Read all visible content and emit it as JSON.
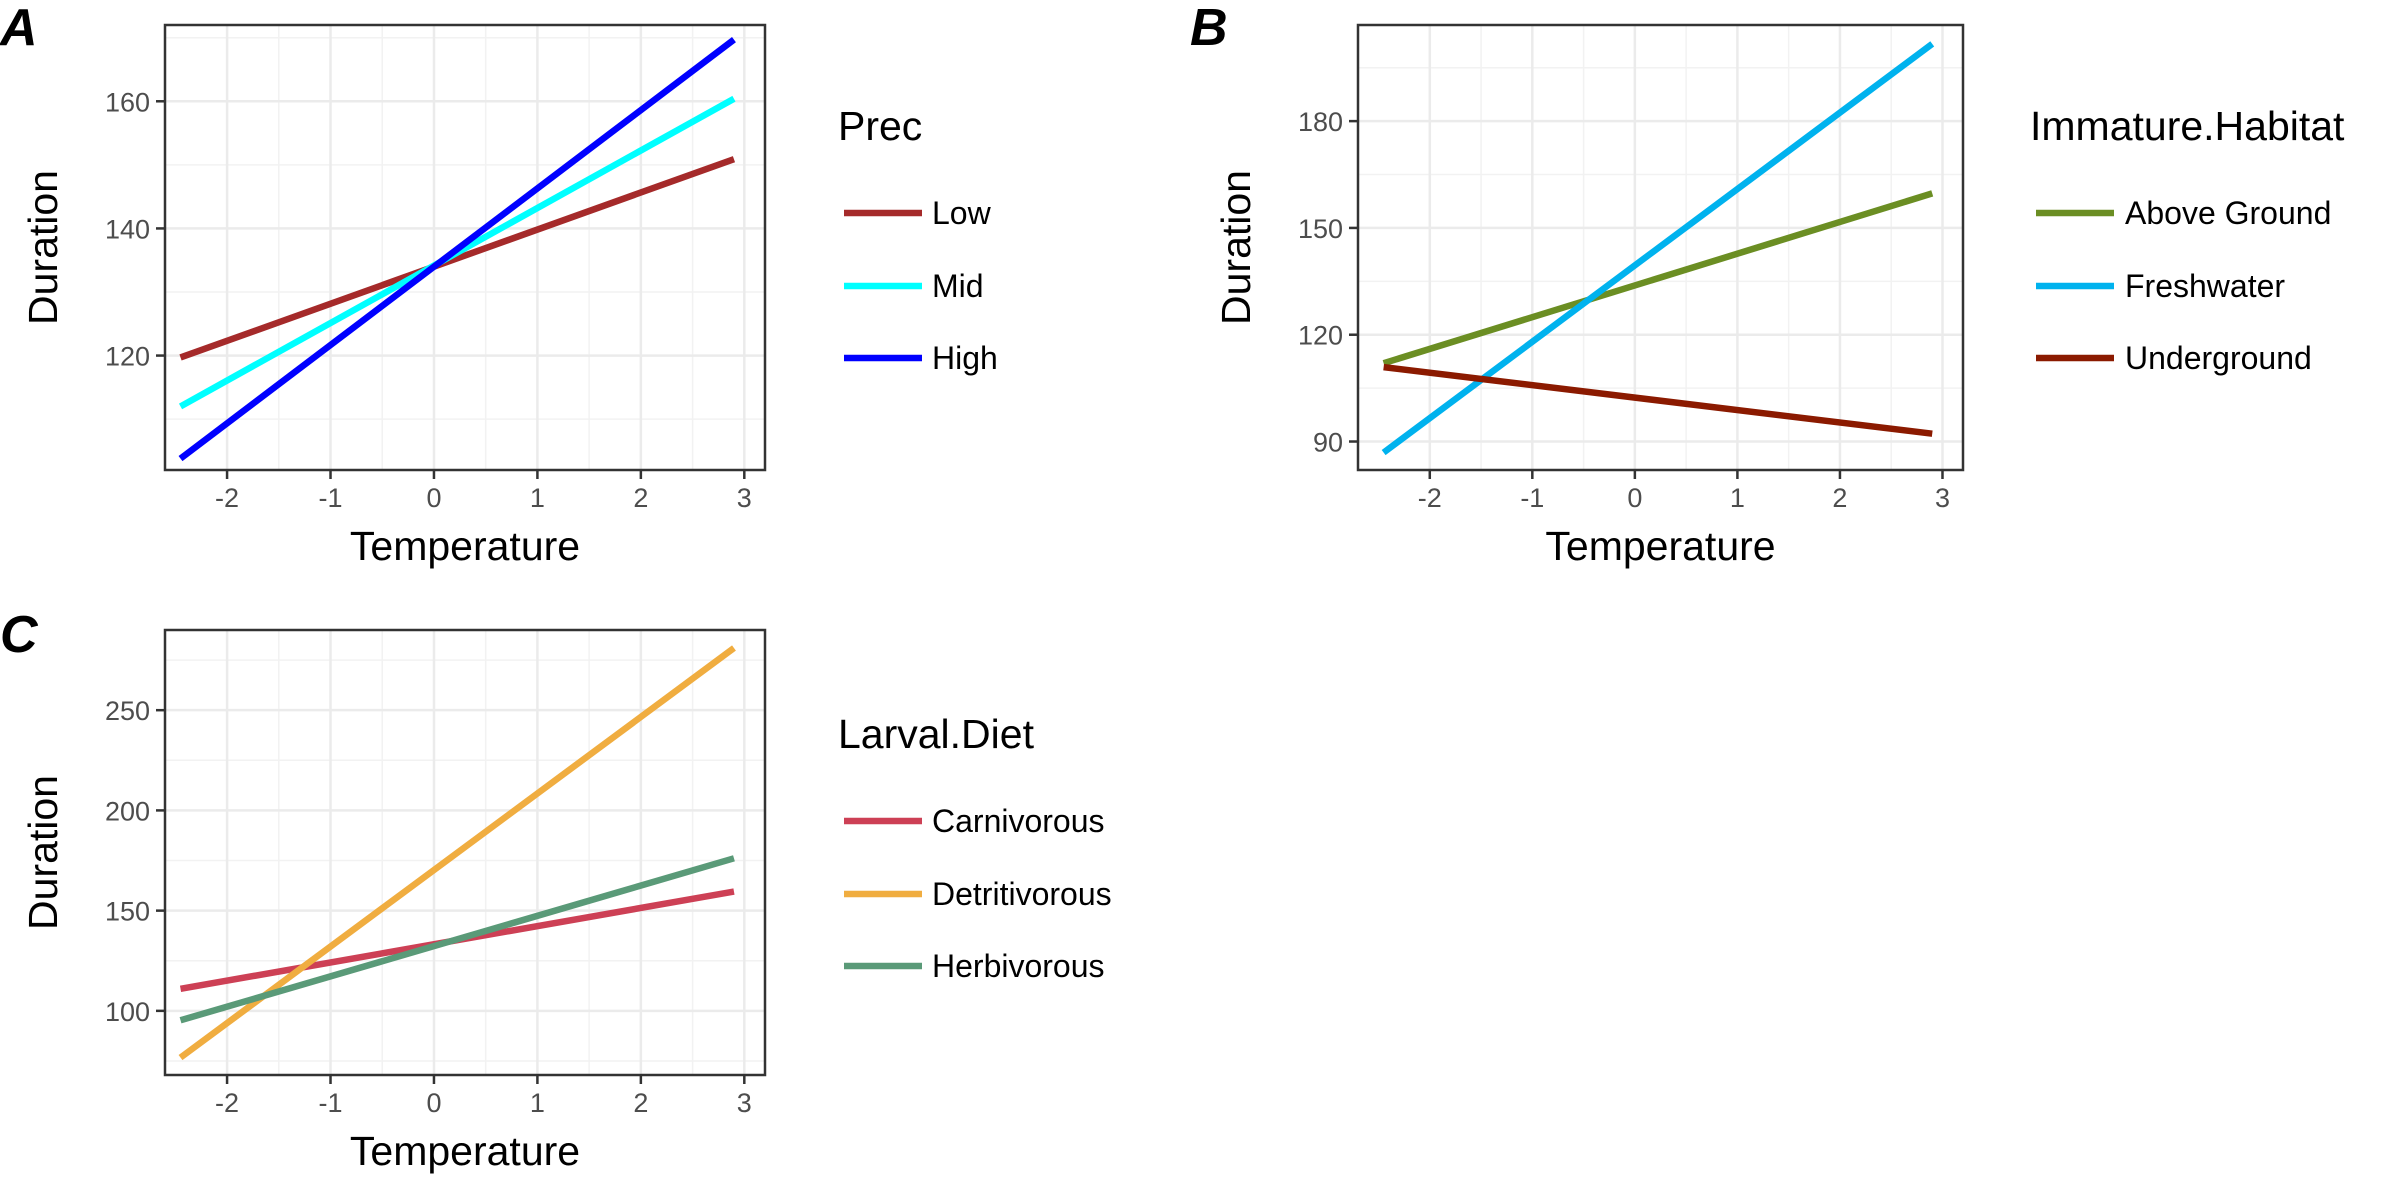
{
  "chart_data": [
    {
      "panel": "A",
      "type": "line",
      "xlabel": "Temperature",
      "ylabel": "Duration",
      "xlim": [
        -2.6,
        3.2
      ],
      "ylim": [
        102,
        172
      ],
      "xticks": [
        -2,
        -1,
        0,
        1,
        2,
        3
      ],
      "yticks": [
        120,
        140,
        160
      ],
      "grid": true,
      "legend_title": "Prec",
      "legend_position": "right",
      "series": [
        {
          "name": "Low",
          "color": "#A52A2A",
          "x": [
            -2.45,
            2.9
          ],
          "y": [
            119.7,
            150.9
          ]
        },
        {
          "name": "Mid",
          "color": "#00FFFF",
          "x": [
            -2.45,
            2.9
          ],
          "y": [
            112.0,
            160.4
          ]
        },
        {
          "name": "High",
          "color": "#0000FF",
          "x": [
            -2.45,
            2.9
          ],
          "y": [
            103.8,
            169.7
          ]
        }
      ]
    },
    {
      "panel": "B",
      "type": "line",
      "xlabel": "Temperature",
      "ylabel": "Duration",
      "xlim": [
        -2.7,
        3.2
      ],
      "ylim": [
        82,
        207
      ],
      "xticks": [
        -2,
        -1,
        0,
        1,
        2,
        3
      ],
      "yticks": [
        90,
        120,
        150,
        180
      ],
      "grid": true,
      "legend_title": "Immature.Habitat",
      "legend_position": "right",
      "series": [
        {
          "name": "Above Ground",
          "color": "#6B8E23",
          "x": [
            -2.45,
            2.9
          ],
          "y": [
            112.0,
            159.7
          ]
        },
        {
          "name": "Freshwater",
          "color": "#00B2EE",
          "x": [
            -2.45,
            2.9
          ],
          "y": [
            86.9,
            201.7
          ]
        },
        {
          "name": "Underground",
          "color": "#8B1A00",
          "x": [
            -2.45,
            2.9
          ],
          "y": [
            110.9,
            92.2
          ]
        }
      ]
    },
    {
      "panel": "C",
      "type": "line",
      "xlabel": "Temperature",
      "ylabel": "Duration",
      "xlim": [
        -2.6,
        3.2
      ],
      "ylim": [
        68,
        290
      ],
      "xticks": [
        -2,
        -1,
        0,
        1,
        2,
        3
      ],
      "yticks": [
        100,
        150,
        200,
        250
      ],
      "grid": true,
      "legend_title": "Larval.Diet",
      "legend_position": "right",
      "series": [
        {
          "name": "Carnivorous",
          "color": "#CD4055",
          "x": [
            -2.45,
            2.9
          ],
          "y": [
            111.0,
            159.5
          ]
        },
        {
          "name": "Detritivorous",
          "color": "#F0AD40",
          "x": [
            -2.45,
            2.9
          ],
          "y": [
            76.7,
            281.0
          ]
        },
        {
          "name": "Herbivorous",
          "color": "#5A9A78",
          "x": [
            -2.45,
            2.9
          ],
          "y": [
            95.3,
            176.1
          ]
        }
      ]
    }
  ]
}
